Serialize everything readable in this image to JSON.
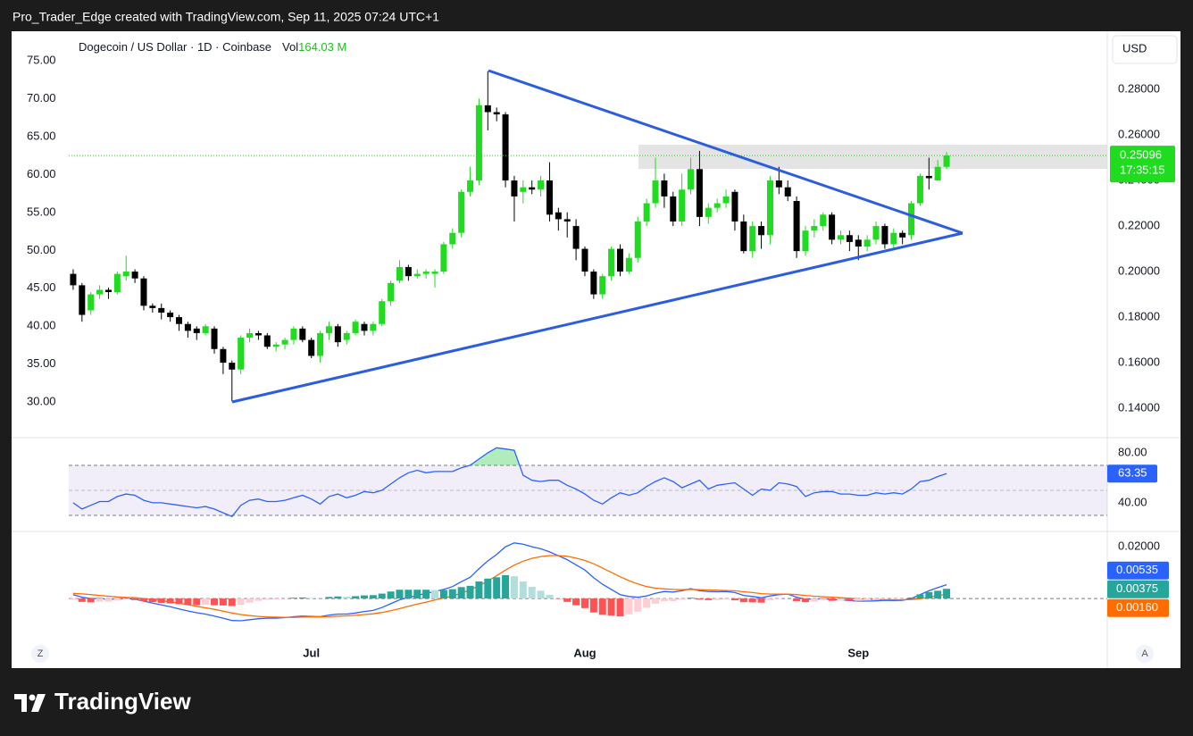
{
  "header": {
    "text": "Pro_Trader_Edge created with TradingView.com, Sep 11, 2025 07:24 UTC+1"
  },
  "footer": {
    "brand": "TradingView"
  },
  "scale_buttons": [
    "Z",
    "A"
  ],
  "chart_data": [
    {
      "type": "candlestick",
      "title": "Dogecoin / US Dollar · 1D · Coinbase",
      "volume_prefix": "Vol",
      "volume": 164030000,
      "volume_label": "164.03 M",
      "currency": "USD",
      "categories": [
        null,
        null,
        null,
        null,
        null,
        null,
        null,
        null,
        null,
        null,
        null,
        null,
        null,
        null,
        null,
        null,
        null,
        null,
        null,
        null,
        null,
        null,
        null,
        null,
        null,
        null,
        null,
        "Jul",
        null,
        null,
        null,
        null,
        null,
        null,
        null,
        null,
        null,
        null,
        null,
        null,
        null,
        null,
        null,
        null,
        null,
        null,
        null,
        null,
        null,
        null,
        null,
        null,
        null,
        null,
        null,
        null,
        null,
        null,
        "Aug",
        null,
        null,
        null,
        null,
        null,
        null,
        null,
        null,
        null,
        null,
        null,
        null,
        null,
        null,
        null,
        null,
        null,
        null,
        null,
        null,
        null,
        null,
        null,
        null,
        null,
        null,
        null,
        null,
        null,
        null,
        "Sep",
        null,
        null,
        null,
        null,
        null,
        null,
        null,
        null,
        null,
        null
      ],
      "open": [
        0.199,
        0.194,
        0.183,
        0.19,
        0.192,
        0.191,
        0.198,
        0.2,
        0.197,
        0.185,
        0.184,
        0.182,
        0.18,
        0.177,
        0.175,
        0.173,
        0.175,
        0.166,
        0.16,
        0.157,
        0.171,
        0.173,
        0.172,
        0.167,
        0.168,
        0.17,
        0.175,
        0.17,
        0.163,
        0.173,
        0.176,
        0.17,
        0.173,
        0.177,
        0.174,
        0.177,
        0.187,
        0.196,
        0.202,
        0.198,
        0.199,
        0.199,
        0.2,
        0.212,
        0.217,
        0.235,
        0.24,
        0.273,
        0.27,
        0.269,
        0.24,
        0.235,
        0.237,
        0.236,
        0.24,
        0.226,
        0.223,
        0.22,
        0.21,
        0.2,
        0.19,
        0.198,
        0.21,
        0.2,
        0.206,
        0.222,
        0.23,
        0.24,
        0.233,
        0.222,
        0.236,
        0.245,
        0.224,
        0.228,
        0.23,
        0.235,
        0.222,
        0.209,
        0.22,
        0.216,
        0.24,
        0.237,
        0.231,
        0.209,
        0.218,
        0.22,
        0.225,
        0.214,
        0.216,
        0.214,
        0.211,
        0.214,
        0.22,
        0.212,
        0.217,
        0.216,
        0.23,
        0.242,
        0.24,
        0.246
      ],
      "high": [
        0.201,
        0.195,
        0.191,
        0.194,
        0.193,
        0.2,
        0.207,
        0.201,
        0.198,
        0.186,
        0.186,
        0.183,
        0.181,
        0.178,
        0.176,
        0.177,
        0.176,
        0.167,
        0.161,
        0.172,
        0.175,
        0.174,
        0.173,
        0.169,
        0.171,
        0.176,
        0.176,
        0.171,
        0.174,
        0.178,
        0.177,
        0.174,
        0.179,
        0.178,
        0.178,
        0.188,
        0.196,
        0.205,
        0.203,
        0.201,
        0.201,
        0.201,
        0.213,
        0.219,
        0.236,
        0.246,
        0.276,
        0.288,
        0.272,
        0.27,
        0.242,
        0.24,
        0.24,
        0.242,
        0.248,
        0.228,
        0.226,
        0.223,
        0.211,
        0.201,
        0.199,
        0.211,
        0.212,
        0.208,
        0.224,
        0.232,
        0.25,
        0.243,
        0.235,
        0.243,
        0.25,
        0.253,
        0.23,
        0.232,
        0.236,
        0.236,
        0.225,
        0.222,
        0.222,
        0.242,
        0.246,
        0.24,
        0.233,
        0.22,
        0.223,
        0.226,
        0.226,
        0.218,
        0.218,
        0.216,
        0.216,
        0.222,
        0.221,
        0.219,
        0.218,
        0.231,
        0.243,
        0.25,
        0.249,
        0.2525
      ],
      "low": [
        0.192,
        0.178,
        0.181,
        0.188,
        0.188,
        0.19,
        0.196,
        0.195,
        0.183,
        0.182,
        0.179,
        0.178,
        0.174,
        0.171,
        0.17,
        0.172,
        0.164,
        0.155,
        0.143,
        0.155,
        0.169,
        0.17,
        0.166,
        0.165,
        0.166,
        0.168,
        0.169,
        0.162,
        0.16,
        0.17,
        0.167,
        0.168,
        0.172,
        0.172,
        0.172,
        0.176,
        0.185,
        0.195,
        0.196,
        0.197,
        0.197,
        0.193,
        0.199,
        0.21,
        0.215,
        0.233,
        0.238,
        0.262,
        0.266,
        0.237,
        0.222,
        0.23,
        0.234,
        0.233,
        0.222,
        0.218,
        0.215,
        0.205,
        0.198,
        0.188,
        0.188,
        0.196,
        0.198,
        0.199,
        0.204,
        0.22,
        0.228,
        0.228,
        0.22,
        0.22,
        0.234,
        0.22,
        0.221,
        0.226,
        0.228,
        0.218,
        0.208,
        0.206,
        0.21,
        0.212,
        0.234,
        0.231,
        0.206,
        0.207,
        0.215,
        0.218,
        0.212,
        0.212,
        0.209,
        0.205,
        0.209,
        0.212,
        0.21,
        0.21,
        0.212,
        0.214,
        0.229,
        0.236,
        0.24,
        0.245
      ],
      "close": [
        0.194,
        0.181,
        0.19,
        0.192,
        0.191,
        0.199,
        0.2,
        0.197,
        0.185,
        0.184,
        0.182,
        0.18,
        0.177,
        0.174,
        0.173,
        0.176,
        0.166,
        0.16,
        0.157,
        0.171,
        0.173,
        0.172,
        0.167,
        0.168,
        0.17,
        0.175,
        0.17,
        0.163,
        0.173,
        0.176,
        0.169,
        0.173,
        0.178,
        0.174,
        0.177,
        0.187,
        0.195,
        0.202,
        0.198,
        0.199,
        0.2,
        0.2,
        0.212,
        0.217,
        0.235,
        0.24,
        0.273,
        0.27,
        0.269,
        0.24,
        0.233,
        0.237,
        0.236,
        0.24,
        0.225,
        0.223,
        0.222,
        0.21,
        0.2,
        0.19,
        0.198,
        0.21,
        0.2,
        0.206,
        0.222,
        0.23,
        0.24,
        0.233,
        0.222,
        0.236,
        0.245,
        0.224,
        0.228,
        0.23,
        0.233,
        0.222,
        0.209,
        0.22,
        0.216,
        0.24,
        0.237,
        0.233,
        0.209,
        0.218,
        0.22,
        0.225,
        0.214,
        0.216,
        0.213,
        0.211,
        0.214,
        0.22,
        0.212,
        0.217,
        0.215,
        0.23,
        0.242,
        0.241,
        0.246,
        0.25096
      ],
      "up_color": "#1fdc1f",
      "down_color": "#000000",
      "ylim": [
        0.1271,
        0.3055
      ],
      "yticks": [
        {
          "value": 0.14,
          "label": "0.14000"
        },
        {
          "value": 0.16,
          "label": "0.16000"
        },
        {
          "value": 0.18,
          "label": "0.18000"
        },
        {
          "value": 0.2,
          "label": "0.20000"
        },
        {
          "value": 0.22,
          "label": "0.22000"
        },
        {
          "value": 0.24,
          "label": "0.24000"
        },
        {
          "value": 0.26,
          "label": "0.26000"
        },
        {
          "value": 0.28,
          "label": "0.28000"
        }
      ],
      "y2lim": [
        25.3,
        78.9
      ],
      "y2ticks": [
        {
          "value": 30,
          "label": "30.00"
        },
        {
          "value": 35,
          "label": "35.00"
        },
        {
          "value": 40,
          "label": "40.00"
        },
        {
          "value": 45,
          "label": "45.00"
        },
        {
          "value": 50,
          "label": "50.00"
        },
        {
          "value": 55,
          "label": "55.00"
        },
        {
          "value": 60,
          "label": "60.00"
        },
        {
          "value": 65,
          "label": "65.00"
        },
        {
          "value": 70,
          "label": "70.00"
        },
        {
          "value": 75,
          "label": "75.00"
        }
      ],
      "last_price": 0.25096,
      "countdown": "17:35:15",
      "last_color": "#1fdc1f"
    },
    {
      "type": "line",
      "values": [
        40,
        35,
        38,
        41,
        41,
        45,
        47,
        46,
        42,
        40,
        40,
        39,
        38,
        37,
        36,
        37,
        35,
        32,
        29,
        38,
        42,
        43,
        41,
        41,
        42,
        44,
        46,
        43,
        39,
        45,
        47,
        44,
        46,
        49,
        48,
        50,
        55,
        60,
        64,
        66,
        64,
        65,
        65,
        65,
        68,
        70,
        75,
        80,
        84,
        83,
        82,
        62,
        58,
        57,
        58,
        58,
        54,
        51,
        47,
        42,
        39,
        44,
        48,
        46,
        48,
        53,
        57,
        60,
        57,
        52,
        55,
        58,
        51,
        54,
        55,
        56,
        51,
        46,
        51,
        50,
        56,
        55,
        53,
        45,
        48,
        49,
        49,
        47,
        47,
        46,
        46,
        48,
        47,
        48,
        47,
        51,
        57,
        58,
        61,
        63.35
      ],
      "color": "#2962ff",
      "band": [
        30,
        70
      ],
      "midline": 50,
      "ylim": [
        17.1,
        92.1
      ],
      "yticks": [
        {
          "value": 40,
          "label": "40.00"
        },
        {
          "value": 80,
          "label": "80.00"
        }
      ]
    },
    {
      "type": "macd",
      "series": [
        {
          "kind": "line",
          "color": "#2962ff",
          "last_label": "0.00535",
          "values": [
            0.0015,
            0.0005,
            0,
            0,
            -0.0003,
            -0.0002,
            0,
            -0.0003,
            -0.001,
            -0.0018,
            -0.0025,
            -0.0032,
            -0.004,
            -0.0048,
            -0.0055,
            -0.006,
            -0.0068,
            -0.0076,
            -0.0085,
            -0.0086,
            -0.0082,
            -0.0078,
            -0.0076,
            -0.0076,
            -0.0074,
            -0.007,
            -0.0068,
            -0.0069,
            -0.007,
            -0.0064,
            -0.006,
            -0.006,
            -0.0056,
            -0.005,
            -0.0046,
            -0.0035,
            -0.002,
            -0.0005,
            0.0004,
            0.0012,
            0.002,
            0.0027,
            0.0035,
            0.0046,
            0.0065,
            0.0082,
            0.0115,
            0.0145,
            0.017,
            0.02,
            0.0215,
            0.021,
            0.02,
            0.0192,
            0.018,
            0.0165,
            0.015,
            0.013,
            0.011,
            0.008,
            0.0055,
            0.0035,
            0.0015,
            0.0008,
            0.0005,
            0.001,
            0.002,
            0.0027,
            0.0025,
            0.003,
            0.0038,
            0.003,
            0.0027,
            0.0026,
            0.0027,
            0.0023,
            0.0012,
            0.0008,
            0.0003,
            0.001,
            0.0015,
            0.0017,
            0.0005,
            -0.0002,
            -0.0003,
            0,
            -0.0004,
            -0.0005,
            -0.0008,
            -0.001,
            -0.001,
            -0.0009,
            -0.0007,
            -0.0008,
            -0.0007,
            0,
            0.0015,
            0.003,
            0.0042,
            0.00535
          ]
        },
        {
          "kind": "line",
          "color": "#ff6d00",
          "last_label": "0.00160",
          "values": [
            0.002,
            0.0018,
            0.0015,
            0.0012,
            0.0009,
            0.0006,
            0.0004,
            0.0003,
            0,
            -0.0004,
            -0.0008,
            -0.0013,
            -0.0018,
            -0.0024,
            -0.003,
            -0.0036,
            -0.0042,
            -0.0049,
            -0.0056,
            -0.0062,
            -0.0066,
            -0.0069,
            -0.0071,
            -0.0072,
            -0.0073,
            -0.0073,
            -0.0072,
            -0.0071,
            -0.0071,
            -0.007,
            -0.0068,
            -0.0067,
            -0.0065,
            -0.0062,
            -0.0059,
            -0.0054,
            -0.0047,
            -0.0039,
            -0.003,
            -0.0022,
            -0.0014,
            -0.0006,
            0.0002,
            0.001,
            0.0021,
            0.0033,
            0.0049,
            0.0068,
            0.0088,
            0.011,
            0.0129,
            0.0144,
            0.0155,
            0.0162,
            0.0166,
            0.0166,
            0.0163,
            0.0156,
            0.0147,
            0.0134,
            0.0118,
            0.0101,
            0.0084,
            0.0069,
            0.0056,
            0.0046,
            0.004,
            0.0037,
            0.0035,
            0.0034,
            0.0035,
            0.0034,
            0.0033,
            0.0032,
            0.0031,
            0.003,
            0.0026,
            0.0023,
            0.0019,
            0.0017,
            0.0017,
            0.0017,
            0.0015,
            0.0012,
            0.0009,
            0.0007,
            0.0005,
            0.0003,
            0.0001,
            -0.0001,
            -0.0003,
            -0.0004,
            -0.0004,
            -0.0005,
            -0.0005,
            -0.0004,
            -0.0001,
            0.0005,
            0.0012,
            0.0016
          ]
        },
        {
          "kind": "histogram",
          "last_label": "0.00375",
          "colors": [
            "#26a69a",
            "#b2dfdb",
            "#ff5252",
            "#ffcdd2"
          ],
          "values": [
            -0.0005,
            -0.0013,
            -0.0015,
            -0.0012,
            -0.0012,
            -0.0008,
            -0.0004,
            -0.0006,
            -0.001,
            -0.0014,
            -0.0017,
            -0.0019,
            -0.0022,
            -0.0024,
            -0.0025,
            -0.0024,
            -0.0026,
            -0.0027,
            -0.0029,
            -0.0024,
            -0.0016,
            -0.0009,
            -0.0005,
            -0.0004,
            -0.0001,
            0.0003,
            0.0004,
            0.0002,
            0.0001,
            0.0006,
            0.0008,
            0.0007,
            0.0009,
            0.0012,
            0.0013,
            0.0019,
            0.0027,
            0.0034,
            0.0034,
            0.0034,
            0.0034,
            0.0033,
            0.0033,
            0.0036,
            0.0044,
            0.0049,
            0.0066,
            0.0077,
            0.0082,
            0.009,
            0.0086,
            0.0066,
            0.0045,
            0.003,
            0.0014,
            -0.0001,
            -0.0013,
            -0.0026,
            -0.0037,
            -0.0054,
            -0.0063,
            -0.0066,
            -0.0069,
            -0.0061,
            -0.0051,
            -0.0036,
            -0.002,
            -0.001,
            -0.001,
            -0.0004,
            0.0003,
            -0.0004,
            -0.0006,
            -0.0006,
            -0.0004,
            -0.0007,
            -0.0014,
            -0.0015,
            -0.0016,
            -0.0007,
            -0.0002,
            0,
            -0.001,
            -0.0014,
            -0.0012,
            -0.0007,
            -0.0009,
            -0.0008,
            -0.0009,
            -0.0009,
            -0.0007,
            -0.0005,
            -0.0003,
            -0.0003,
            -0.0002,
            0.0004,
            0.0016,
            0.0025,
            0.003,
            0.00375
          ]
        }
      ],
      "ylim": [
        -0.0155,
        0.0259
      ],
      "yticks": [
        {
          "value": 0.02,
          "label": "0.02000"
        }
      ]
    }
  ]
}
